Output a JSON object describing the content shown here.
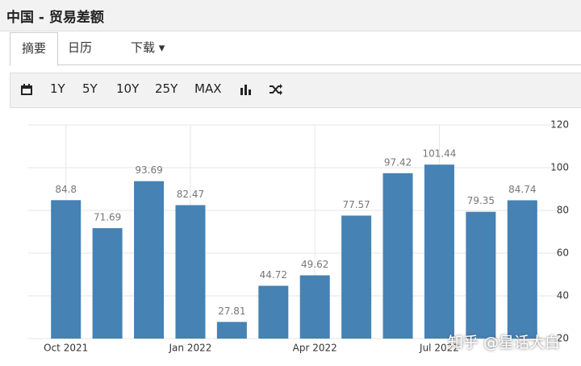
{
  "header": {
    "title": "中国 - 贸易差额"
  },
  "tabs": [
    "摘要",
    "日历",
    "下载"
  ],
  "toolbar": [
    "1Y",
    "5Y",
    "10Y",
    "25Y",
    "MAX"
  ],
  "chart_data": {
    "type": "bar",
    "categories": [
      "Oct 2021",
      null,
      null,
      "Jan 2022",
      null,
      null,
      "Apr 2022",
      null,
      null,
      "Jul 2022",
      null,
      null
    ],
    "values": [
      84.8,
      71.69,
      93.69,
      82.47,
      27.81,
      44.72,
      49.62,
      77.57,
      97.42,
      101.44,
      79.35,
      84.74
    ],
    "color": "#4682b4",
    "ylim": [
      20,
      120
    ],
    "yticks": [
      20,
      40,
      60,
      80,
      100,
      120
    ],
    "grid": true
  },
  "watermark": "知乎 @星话大白"
}
